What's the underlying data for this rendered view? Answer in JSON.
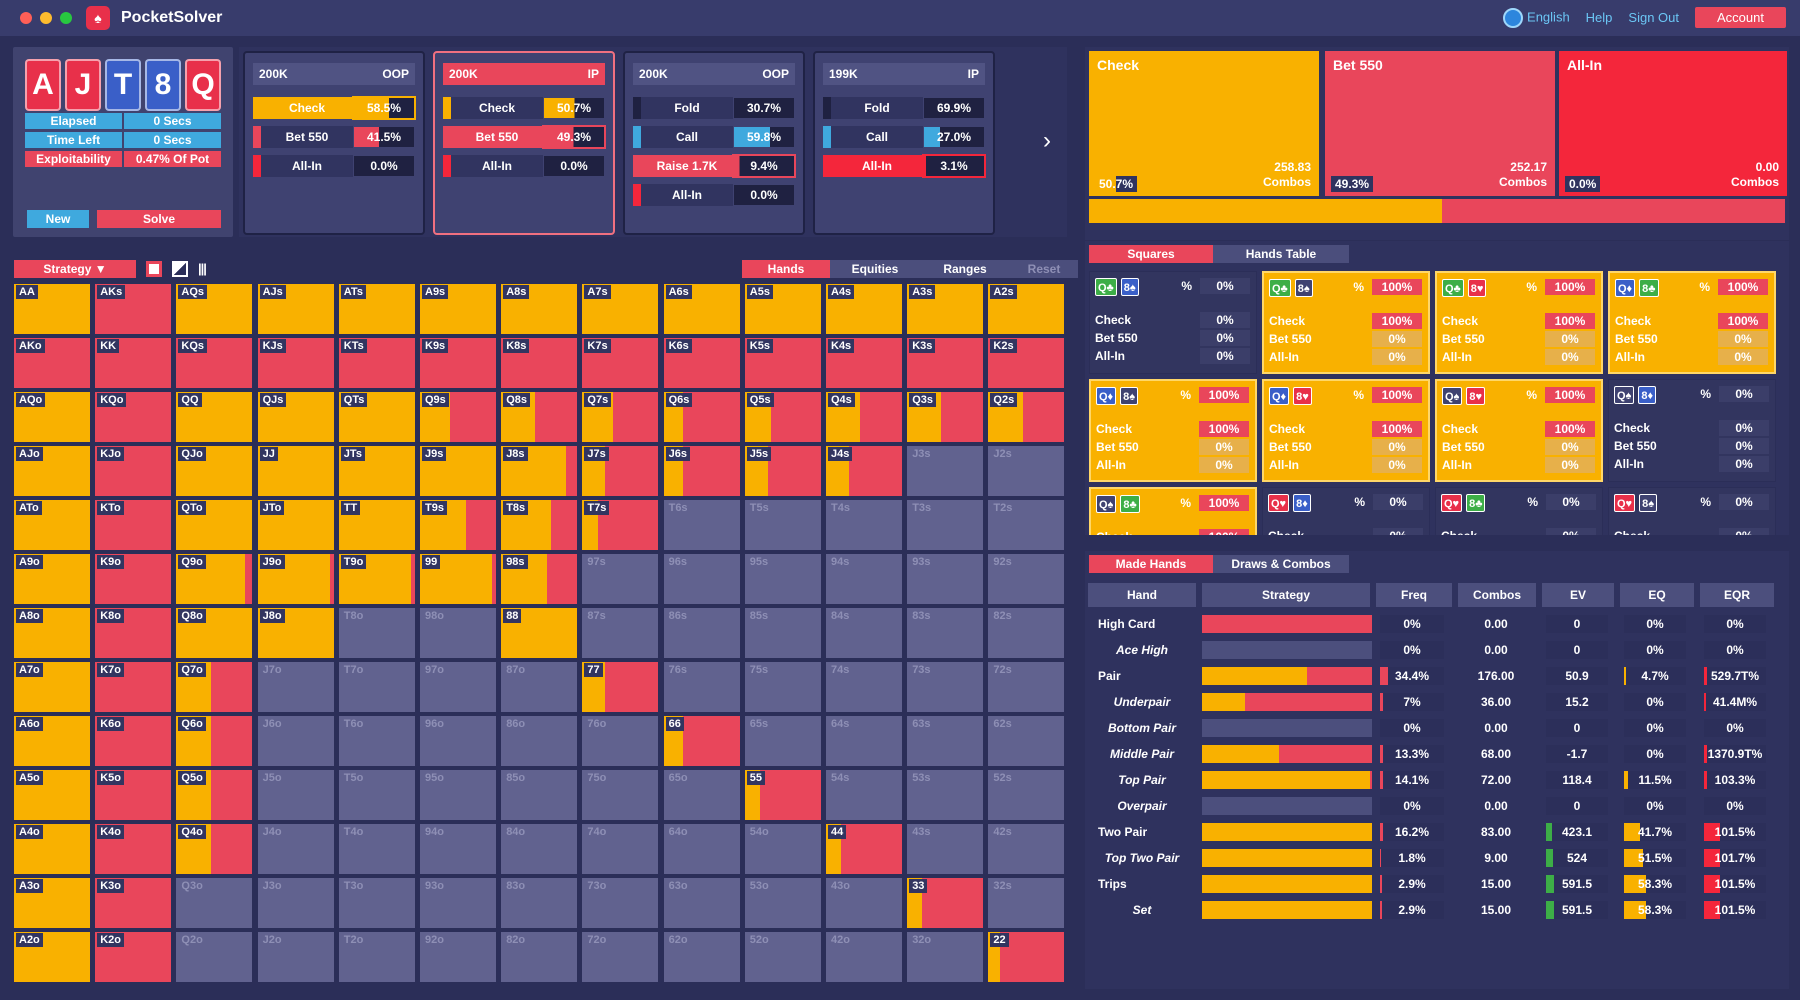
{
  "app": {
    "title": "PocketSolver"
  },
  "nav": {
    "language": "English",
    "help": "Help",
    "sign_out": "Sign Out",
    "account": "Account"
  },
  "board": {
    "cards": [
      {
        "rank": "A",
        "color": "#e8304a"
      },
      {
        "rank": "J",
        "color": "#e8304a"
      },
      {
        "rank": "T",
        "color": "#3a5fc8"
      },
      {
        "rank": "8",
        "color": "#3a5fc8"
      },
      {
        "rank": "Q",
        "color": "#e8304a"
      }
    ]
  },
  "stats": [
    {
      "label": "Elapsed",
      "value": "0 Secs"
    },
    {
      "label": "Time Left",
      "value": "0 Secs"
    },
    {
      "label": "Exploitability",
      "value": "0.47% Of Pot"
    }
  ],
  "buttons": {
    "new": "New",
    "solve": "Solve"
  },
  "nodes": [
    {
      "stack": "200K",
      "pos": "OOP",
      "actions": [
        {
          "name": "Check",
          "pct": "58.5%",
          "color": "#f9b100",
          "frac": 0.585
        },
        {
          "name": "Bet 550",
          "pct": "41.5%",
          "color": "#e9465b",
          "frac": 0.415
        },
        {
          "name": "All-In",
          "pct": "0.0%",
          "color": "#f4263b",
          "frac": 0
        }
      ]
    },
    {
      "stack": "200K",
      "pos": "IP",
      "actions": [
        {
          "name": "Check",
          "pct": "50.7%",
          "color": "#f9b100",
          "frac": 0.507
        },
        {
          "name": "Bet 550",
          "pct": "49.3%",
          "color": "#e9465b",
          "frac": 0.493
        },
        {
          "name": "All-In",
          "pct": "0.0%",
          "color": "#f4263b",
          "frac": 0
        }
      ]
    },
    {
      "stack": "200K",
      "pos": "OOP",
      "actions": [
        {
          "name": "Fold",
          "pct": "30.7%",
          "color": "#1f2141",
          "frac": 0.307
        },
        {
          "name": "Call",
          "pct": "59.8%",
          "color": "#3fa9de",
          "frac": 0.598
        },
        {
          "name": "Raise 1.7K",
          "pct": "9.4%",
          "color": "#e9465b",
          "frac": 0.094
        },
        {
          "name": "All-In",
          "pct": "0.0%",
          "color": "#f4263b",
          "frac": 0
        }
      ]
    },
    {
      "stack": "199K",
      "pos": "IP",
      "actions": [
        {
          "name": "Fold",
          "pct": "69.9%",
          "color": "#1f2141",
          "frac": 0.699
        },
        {
          "name": "Call",
          "pct": "27.0%",
          "color": "#3fa9de",
          "frac": 0.27
        },
        {
          "name": "All-In",
          "pct": "3.1%",
          "color": "#f4263b",
          "frac": 0.031
        }
      ]
    }
  ],
  "summary": [
    {
      "label": "Check",
      "combos": "258.83",
      "unit": "Combos",
      "pct": "50.7%",
      "color": "#f9b100",
      "frac": 0.507
    },
    {
      "label": "Bet 550",
      "combos": "252.17",
      "unit": "Combos",
      "pct": "49.3%",
      "color": "#e9465b",
      "frac": 0.493
    },
    {
      "label": "All-In",
      "combos": "0.00",
      "unit": "Combos",
      "pct": "0.0%",
      "color": "#f4263b",
      "frac": 0
    }
  ],
  "grid_toolbar": {
    "strategy": "Strategy ▼",
    "tabs": [
      "Hands",
      "Equities",
      "Ranges"
    ],
    "reset": "Reset"
  },
  "ranks": [
    "A",
    "K",
    "Q",
    "J",
    "T",
    "9",
    "8",
    "7",
    "6",
    "5",
    "4",
    "3",
    "2"
  ],
  "grid_check_freq": [
    [
      1,
      0,
      1,
      1,
      1,
      1,
      1,
      1,
      1,
      1,
      1,
      1,
      1
    ],
    [
      0,
      0,
      0,
      0,
      0,
      0,
      0,
      0,
      0,
      0,
      0,
      0,
      0
    ],
    [
      1,
      0,
      1,
      1,
      1,
      0.4,
      0.45,
      0.4,
      0.25,
      0.35,
      0.45,
      0.45,
      0.45
    ],
    [
      1,
      0,
      1,
      1,
      1,
      1,
      0.85,
      0.3,
      0.25,
      0.3,
      0.3,
      null,
      null
    ],
    [
      1,
      0,
      1,
      1,
      1,
      0.6,
      0.65,
      0.2,
      null,
      null,
      null,
      null,
      null
    ],
    [
      1,
      0,
      0.9,
      0.95,
      0.95,
      0.95,
      0.6,
      null,
      null,
      null,
      null,
      null,
      null
    ],
    [
      1,
      0,
      1,
      1,
      null,
      null,
      1,
      null,
      null,
      null,
      null,
      null,
      null
    ],
    [
      1,
      0,
      0.45,
      null,
      null,
      null,
      null,
      0.3,
      null,
      null,
      null,
      null,
      null
    ],
    [
      1,
      0,
      0.45,
      null,
      null,
      null,
      null,
      null,
      0.25,
      null,
      null,
      null,
      null
    ],
    [
      1,
      0,
      0.45,
      null,
      null,
      null,
      null,
      null,
      null,
      0.2,
      null,
      null,
      null
    ],
    [
      1,
      0,
      0.45,
      null,
      null,
      null,
      null,
      null,
      null,
      null,
      0.2,
      null,
      null
    ],
    [
      1,
      0,
      null,
      null,
      null,
      null,
      null,
      null,
      null,
      null,
      null,
      0.2,
      null
    ],
    [
      1,
      0,
      null,
      null,
      null,
      null,
      null,
      null,
      null,
      null,
      null,
      null,
      0.15
    ]
  ],
  "right_tabs": {
    "squares": "Squares",
    "hands_table": "Hands Table"
  },
  "squares": [
    {
      "cards": [
        [
          "Q",
          "♣",
          "#3dae47"
        ],
        [
          "8",
          "♠",
          "#3a5fc8"
        ]
      ],
      "pct": "0%",
      "check": "0%",
      "bet": "0%",
      "allin": "0%",
      "hot": false
    },
    {
      "cards": [
        [
          "Q",
          "♣",
          "#3dae47"
        ],
        [
          "8",
          "♠",
          "#3f4271"
        ]
      ],
      "pct": "100%",
      "check": "100%",
      "bet": "0%",
      "allin": "0%",
      "hot": true
    },
    {
      "cards": [
        [
          "Q",
          "♣",
          "#3dae47"
        ],
        [
          "8",
          "♥",
          "#e8304a"
        ]
      ],
      "pct": "100%",
      "check": "100%",
      "bet": "0%",
      "allin": "0%",
      "hot": true
    },
    {
      "cards": [
        [
          "Q",
          "♦",
          "#3a5fc8"
        ],
        [
          "8",
          "♣",
          "#3dae47"
        ]
      ],
      "pct": "100%",
      "check": "100%",
      "bet": "0%",
      "allin": "0%",
      "hot": true
    },
    {
      "cards": [
        [
          "Q",
          "♦",
          "#3a5fc8"
        ],
        [
          "8",
          "♠",
          "#3f4271"
        ]
      ],
      "pct": "100%",
      "check": "100%",
      "bet": "0%",
      "allin": "0%",
      "hot": true
    },
    {
      "cards": [
        [
          "Q",
          "♦",
          "#3a5fc8"
        ],
        [
          "8",
          "♥",
          "#e8304a"
        ]
      ],
      "pct": "100%",
      "check": "100%",
      "bet": "0%",
      "allin": "0%",
      "hot": true
    },
    {
      "cards": [
        [
          "Q",
          "♠",
          "#3f4271"
        ],
        [
          "8",
          "♥",
          "#e8304a"
        ]
      ],
      "pct": "100%",
      "check": "100%",
      "bet": "0%",
      "allin": "0%",
      "hot": true
    },
    {
      "cards": [
        [
          "Q",
          "♠",
          "#3f4271"
        ],
        [
          "8",
          "♦",
          "#3a5fc8"
        ]
      ],
      "pct": "0%",
      "check": "0%",
      "bet": "0%",
      "allin": "0%",
      "hot": false
    },
    {
      "cards": [
        [
          "Q",
          "♠",
          "#3f4271"
        ],
        [
          "8",
          "♣",
          "#3dae47"
        ]
      ],
      "pct": "100%",
      "check": "100%",
      "bet": "0%",
      "allin": "0%",
      "hot": true
    },
    {
      "cards": [
        [
          "Q",
          "♥",
          "#e8304a"
        ],
        [
          "8",
          "♦",
          "#3a5fc8"
        ]
      ],
      "pct": "0%",
      "check": "0%",
      "bet": "0%",
      "allin": "0%",
      "hot": false
    },
    {
      "cards": [
        [
          "Q",
          "♥",
          "#e8304a"
        ],
        [
          "8",
          "♣",
          "#3dae47"
        ]
      ],
      "pct": "0%",
      "check": "0%",
      "bet": "0%",
      "allin": "0%",
      "hot": false
    },
    {
      "cards": [
        [
          "Q",
          "♥",
          "#e8304a"
        ],
        [
          "8",
          "♠",
          "#3f4271"
        ]
      ],
      "pct": "0%",
      "check": "0%",
      "bet": "0%",
      "allin": "0%",
      "hot": false
    }
  ],
  "square_labels": {
    "check": "Check",
    "bet": "Bet 550",
    "allin": "All-In",
    "pct_sign": "%"
  },
  "bottom_tabs": {
    "made": "Made Hands",
    "draws": "Draws & Combos"
  },
  "table_headers": [
    "Hand",
    "Strategy",
    "Freq",
    "Combos",
    "EV",
    "EQ",
    "EQR"
  ],
  "table_rows": [
    {
      "hand": "High Card",
      "italic": false,
      "strat": 0,
      "freq": "0%",
      "freq_frac": 0,
      "combos": "0.00",
      "ev": "0",
      "ev_frac": 0,
      "eq": "0%",
      "eq_frac": 0,
      "eqr": "0%",
      "eqr_frac": 0
    },
    {
      "hand": "Ace High",
      "italic": true,
      "strat": null,
      "freq": "0%",
      "freq_frac": 0,
      "combos": "0.00",
      "ev": "0",
      "ev_frac": 0,
      "eq": "0%",
      "eq_frac": 0,
      "eqr": "0%",
      "eqr_frac": 0
    },
    {
      "hand": "Pair",
      "italic": false,
      "strat": 0.62,
      "freq": "34.4%",
      "freq_frac": 0.12,
      "combos": "176.00",
      "ev": "50.9",
      "ev_frac": 0,
      "eq": "4.7%",
      "eq_frac": 0.04,
      "eqr": "529.7T%",
      "eqr_frac": 0.05
    },
    {
      "hand": "Underpair",
      "italic": true,
      "strat": 0.25,
      "freq": "7%",
      "freq_frac": 0.04,
      "combos": "36.00",
      "ev": "15.2",
      "ev_frac": 0,
      "eq": "0%",
      "eq_frac": 0,
      "eqr": "41.4M%",
      "eqr_frac": 0.03
    },
    {
      "hand": "Bottom Pair",
      "italic": true,
      "strat": null,
      "freq": "0%",
      "freq_frac": 0,
      "combos": "0.00",
      "ev": "0",
      "ev_frac": 0,
      "eq": "0%",
      "eq_frac": 0,
      "eqr": "0%",
      "eqr_frac": 0
    },
    {
      "hand": "Middle Pair",
      "italic": true,
      "strat": 0.45,
      "freq": "13.3%",
      "freq_frac": 0.05,
      "combos": "68.00",
      "ev": "-1.7",
      "ev_frac": 0,
      "eq": "0%",
      "eq_frac": 0,
      "eqr": "1370.9T%",
      "eqr_frac": 0.05
    },
    {
      "hand": "Top Pair",
      "italic": true,
      "strat": 0.99,
      "freq": "14.1%",
      "freq_frac": 0.05,
      "combos": "72.00",
      "ev": "118.4",
      "ev_frac": 0,
      "eq": "11.5%",
      "eq_frac": 0.06,
      "eqr": "103.3%",
      "eqr_frac": 0.05
    },
    {
      "hand": "Overpair",
      "italic": true,
      "strat": null,
      "freq": "0%",
      "freq_frac": 0,
      "combos": "0.00",
      "ev": "0",
      "ev_frac": 0,
      "eq": "0%",
      "eq_frac": 0,
      "eqr": "0%",
      "eqr_frac": 0
    },
    {
      "hand": "Two Pair",
      "italic": false,
      "strat": 1,
      "freq": "16.2%",
      "freq_frac": 0.05,
      "combos": "83.00",
      "ev": "423.1",
      "ev_frac": 0.1,
      "eq": "41.7%",
      "eq_frac": 0.25,
      "eqr": "101.5%",
      "eqr_frac": 0.25
    },
    {
      "hand": "Top Two Pair",
      "italic": true,
      "strat": 1,
      "freq": "1.8%",
      "freq_frac": 0.02,
      "combos": "9.00",
      "ev": "524",
      "ev_frac": 0.12,
      "eq": "51.5%",
      "eq_frac": 0.3,
      "eqr": "101.7%",
      "eqr_frac": 0.25
    },
    {
      "hand": "Trips",
      "italic": false,
      "strat": 1,
      "freq": "2.9%",
      "freq_frac": 0.03,
      "combos": "15.00",
      "ev": "591.5",
      "ev_frac": 0.13,
      "eq": "58.3%",
      "eq_frac": 0.35,
      "eqr": "101.5%",
      "eqr_frac": 0.25
    },
    {
      "hand": "Set",
      "italic": true,
      "strat": 1,
      "freq": "2.9%",
      "freq_frac": 0.03,
      "combos": "15.00",
      "ev": "591.5",
      "ev_frac": 0.13,
      "eq": "58.3%",
      "eq_frac": 0.35,
      "eqr": "101.5%",
      "eqr_frac": 0.25
    }
  ]
}
